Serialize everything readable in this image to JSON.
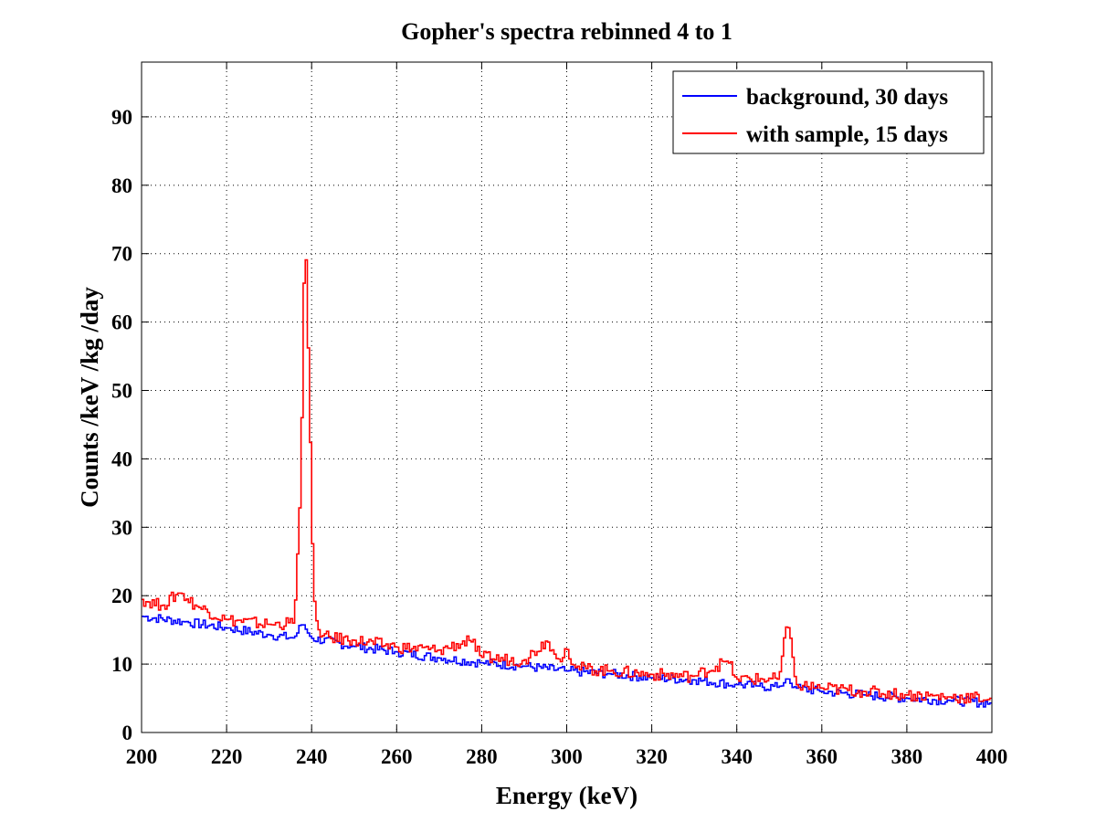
{
  "chart_data": {
    "type": "line",
    "title": "Gopher's spectra rebinned 4 to 1",
    "xlabel": "Energy (keV)",
    "ylabel": "Counts /keV /kg /day",
    "xlim": [
      200,
      400
    ],
    "ylim": [
      0,
      98
    ],
    "xticks": [
      200,
      220,
      240,
      260,
      280,
      300,
      320,
      340,
      360,
      380,
      400
    ],
    "yticks": [
      0,
      10,
      20,
      30,
      40,
      50,
      60,
      70,
      80,
      90
    ],
    "grid": true,
    "legend_position": "top-right",
    "series": [
      {
        "name": "background, 30 days",
        "color": "#0000ff",
        "x": [
          200,
          210,
          220,
          230,
          236,
          238,
          240,
          250,
          260,
          270,
          280,
          290,
          300,
          310,
          320,
          330,
          340,
          345,
          350,
          352,
          354,
          360,
          370,
          380,
          390,
          400
        ],
        "y": [
          17,
          16.2,
          15.3,
          14.3,
          13.8,
          16,
          13.8,
          12.6,
          11.8,
          10.9,
          10.2,
          9.7,
          9.0,
          8.6,
          8.0,
          7.7,
          7.0,
          6.8,
          6.6,
          8.0,
          6.5,
          6.0,
          5.5,
          5.0,
          4.7,
          4.3
        ]
      },
      {
        "name": "with sample, 15 days",
        "color": "#ff0000",
        "x": [
          200,
          205,
          209,
          213,
          220,
          230,
          236,
          237.5,
          238.5,
          239.5,
          240.5,
          242,
          250,
          260,
          270,
          277.5,
          280,
          290,
          295.5,
          298,
          300,
          302,
          310,
          320,
          330,
          338,
          340,
          350,
          352,
          354,
          360,
          370,
          380,
          390,
          400
        ],
        "y": [
          19.5,
          18.5,
          20.5,
          18.5,
          16.5,
          15.8,
          16,
          36.2,
          75.5,
          49.8,
          20.2,
          14,
          13.5,
          12.5,
          12.0,
          13.5,
          11.0,
          10.5,
          13.5,
          10.5,
          12.5,
          9.5,
          9.0,
          8.5,
          8.2,
          10.5,
          7.8,
          7.8,
          16.5,
          7.0,
          6.5,
          6.0,
          5.5,
          5.2,
          5.0
        ]
      }
    ]
  }
}
